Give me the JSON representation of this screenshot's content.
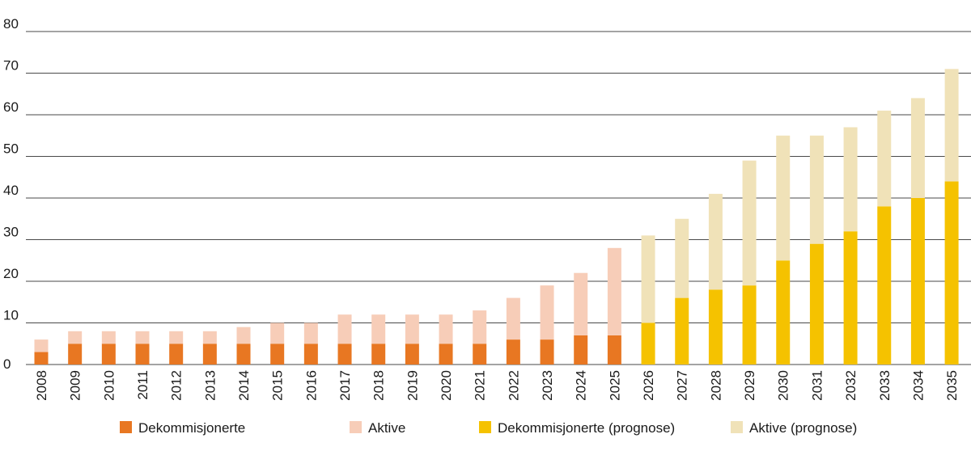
{
  "chart_data": {
    "type": "bar",
    "stacked": true,
    "categories": [
      "2008",
      "2009",
      "2010",
      "2011",
      "2012",
      "2013",
      "2014",
      "2015",
      "2016",
      "2017",
      "2018",
      "2019",
      "2020",
      "2021",
      "2022",
      "2023",
      "2024",
      "2025",
      "2026",
      "2027",
      "2028",
      "2029",
      "2030",
      "2031",
      "2032",
      "2033",
      "2034",
      "2035"
    ],
    "yticks": [
      "0",
      "10",
      "20",
      "30",
      "40",
      "50",
      "60",
      "70",
      "80"
    ],
    "ylim": [
      0,
      80
    ],
    "grid": true,
    "legend_position": "bottom",
    "series": [
      {
        "name": "Dekommisjonerte",
        "color": "#E87722",
        "values": [
          3,
          5,
          5,
          5,
          5,
          5,
          5,
          5,
          5,
          5,
          5,
          5,
          5,
          5,
          6,
          6,
          7,
          7,
          null,
          null,
          null,
          null,
          null,
          null,
          null,
          null,
          null,
          null
        ]
      },
      {
        "name": "Aktive",
        "color": "#F7CDB8",
        "values": [
          3,
          3,
          3,
          3,
          3,
          3,
          4,
          5,
          5,
          7,
          7,
          7,
          7,
          8,
          10,
          13,
          15,
          21,
          null,
          null,
          null,
          null,
          null,
          null,
          null,
          null,
          null,
          null
        ]
      },
      {
        "name": "Dekommisjonerte (prognose)",
        "color": "#F5C200",
        "values": [
          null,
          null,
          null,
          null,
          null,
          null,
          null,
          null,
          null,
          null,
          null,
          null,
          null,
          null,
          null,
          null,
          null,
          null,
          10,
          16,
          18,
          19,
          25,
          29,
          32,
          38,
          40,
          44
        ]
      },
      {
        "name": "Aktive (prognose)",
        "color": "#F0E2B8",
        "values": [
          null,
          null,
          null,
          null,
          null,
          null,
          null,
          null,
          null,
          null,
          null,
          null,
          null,
          null,
          null,
          null,
          null,
          null,
          21,
          19,
          23,
          30,
          30,
          26,
          25,
          23,
          24,
          27
        ]
      }
    ]
  }
}
